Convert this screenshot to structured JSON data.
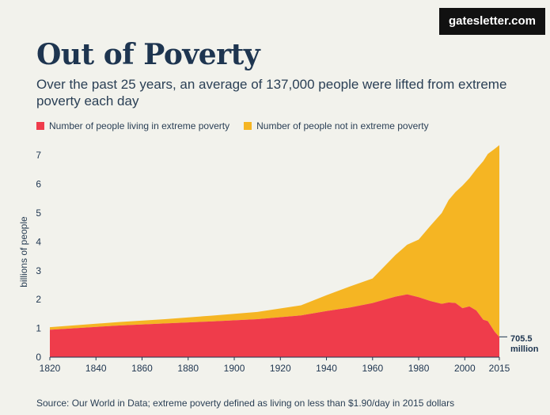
{
  "badge": "gatesletter.com",
  "title": "Out of Poverty",
  "subtitle": "Over the past 25 years, an average of 137,000 people were lifted from extreme poverty each day",
  "legend": [
    {
      "label": "Number of people living in extreme poverty",
      "color": "#ef3c4b"
    },
    {
      "label": "Number of people not in extreme poverty",
      "color": "#f5b523"
    }
  ],
  "annotation": {
    "line1": "705.5",
    "line2": "million"
  },
  "source": "Source: Our World in Data; extreme poverty defined as living on less than $1.90/day in 2015 dollars",
  "chart_data": {
    "type": "area",
    "stacked": true,
    "ylabel": "billions of people",
    "xlim": [
      1820,
      2015
    ],
    "ylim": [
      0,
      7.5
    ],
    "x_ticks": [
      1820,
      1840,
      1860,
      1880,
      1900,
      1920,
      1940,
      1960,
      1980,
      2000,
      2015
    ],
    "y_ticks": [
      0,
      1,
      2,
      3,
      4,
      5,
      6,
      7
    ],
    "x": [
      1820,
      1850,
      1870,
      1890,
      1910,
      1929,
      1940,
      1950,
      1960,
      1970,
      1975,
      1980,
      1985,
      1990,
      1993,
      1996,
      1999,
      2002,
      2005,
      2008,
      2010,
      2013,
      2015
    ],
    "series": [
      {
        "name": "Number of people living in extreme poverty",
        "color": "#ef3c4b",
        "values": [
          0.95,
          1.1,
          1.17,
          1.24,
          1.32,
          1.45,
          1.6,
          1.72,
          1.88,
          2.1,
          2.18,
          2.08,
          1.95,
          1.85,
          1.9,
          1.88,
          1.7,
          1.76,
          1.62,
          1.3,
          1.25,
          0.88,
          0.7055
        ]
      },
      {
        "name": "Number of people not in extreme poverty",
        "color": "#f5b523",
        "values": [
          0.09,
          0.12,
          0.15,
          0.2,
          0.25,
          0.35,
          0.55,
          0.73,
          0.85,
          1.45,
          1.72,
          2.0,
          2.6,
          3.15,
          3.55,
          3.85,
          4.25,
          4.45,
          4.9,
          5.5,
          5.8,
          6.35,
          6.65
        ]
      }
    ]
  }
}
